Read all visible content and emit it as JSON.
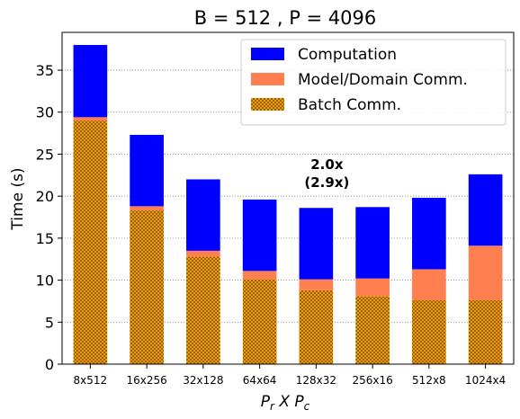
{
  "chart_data": {
    "type": "bar",
    "stacked": true,
    "title": "B = 512 ,  P = 4096",
    "xlabel_parts": {
      "main": "P",
      "sub_r": "r",
      "mid": " X ",
      "main2": "P",
      "sub_c": "c"
    },
    "ylabel": "Time (s)",
    "ylim": [
      0,
      39.5
    ],
    "yticks": [
      0,
      5,
      10,
      15,
      20,
      25,
      30,
      35
    ],
    "categories": [
      "8x512",
      "16x256",
      "32x128",
      "64x64",
      "128x32",
      "256x16",
      "512x8",
      "1024x4"
    ],
    "series": [
      {
        "name": "Batch Comm.",
        "color": "#ffa500",
        "hatch": true,
        "values": [
          29.0,
          18.3,
          12.8,
          10.1,
          8.8,
          8.1,
          7.6,
          7.6
        ]
      },
      {
        "name": "Model/Domain Comm.",
        "color": "#ff7f50",
        "hatch": false,
        "values": [
          0.4,
          0.5,
          0.7,
          1.0,
          1.3,
          2.1,
          3.7,
          6.5
        ]
      },
      {
        "name": "Computation",
        "color": "#0000ff",
        "hatch": false,
        "values": [
          8.6,
          8.5,
          8.5,
          8.5,
          8.5,
          8.5,
          8.5,
          8.5
        ]
      }
    ],
    "legend_order": [
      "Computation",
      "Model/Domain Comm.",
      "Batch Comm."
    ],
    "legend_position": "top-right",
    "grid": "y-dotted",
    "annotation": {
      "lines": [
        "2.0x",
        "(2.9x)"
      ],
      "category": "128x32",
      "y": 21.5
    }
  }
}
